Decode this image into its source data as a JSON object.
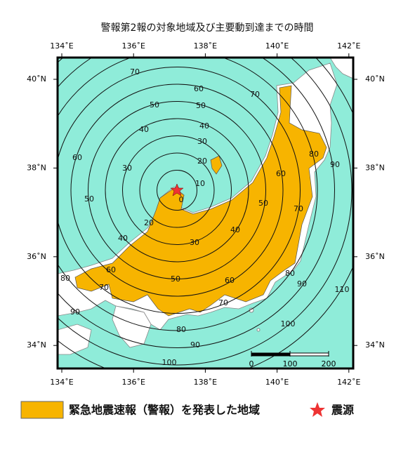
{
  "title": "警報第2報の対象地域及び主要動到達までの時間",
  "map": {
    "lon_ticks": [
      {
        "value": 134,
        "label": "134˚E"
      },
      {
        "value": 136,
        "label": "136˚E"
      },
      {
        "value": 138,
        "label": "138˚E"
      },
      {
        "value": 140,
        "label": "140˚E"
      },
      {
        "value": 142,
        "label": "142˚E"
      }
    ],
    "lat_ticks": [
      {
        "value": 40,
        "label": "40˚N"
      },
      {
        "value": 38,
        "label": "38˚N"
      },
      {
        "value": 36,
        "label": "36˚N"
      },
      {
        "value": 34,
        "label": "34˚N"
      }
    ],
    "contour_times": [
      0,
      10,
      20,
      30,
      40,
      50,
      60,
      70,
      80,
      90,
      100,
      110
    ],
    "scale_bar": [
      0,
      100,
      200
    ]
  },
  "legend": {
    "area": "緊急地震速報（警報）を発表した地域",
    "epicenter": "震源"
  }
}
